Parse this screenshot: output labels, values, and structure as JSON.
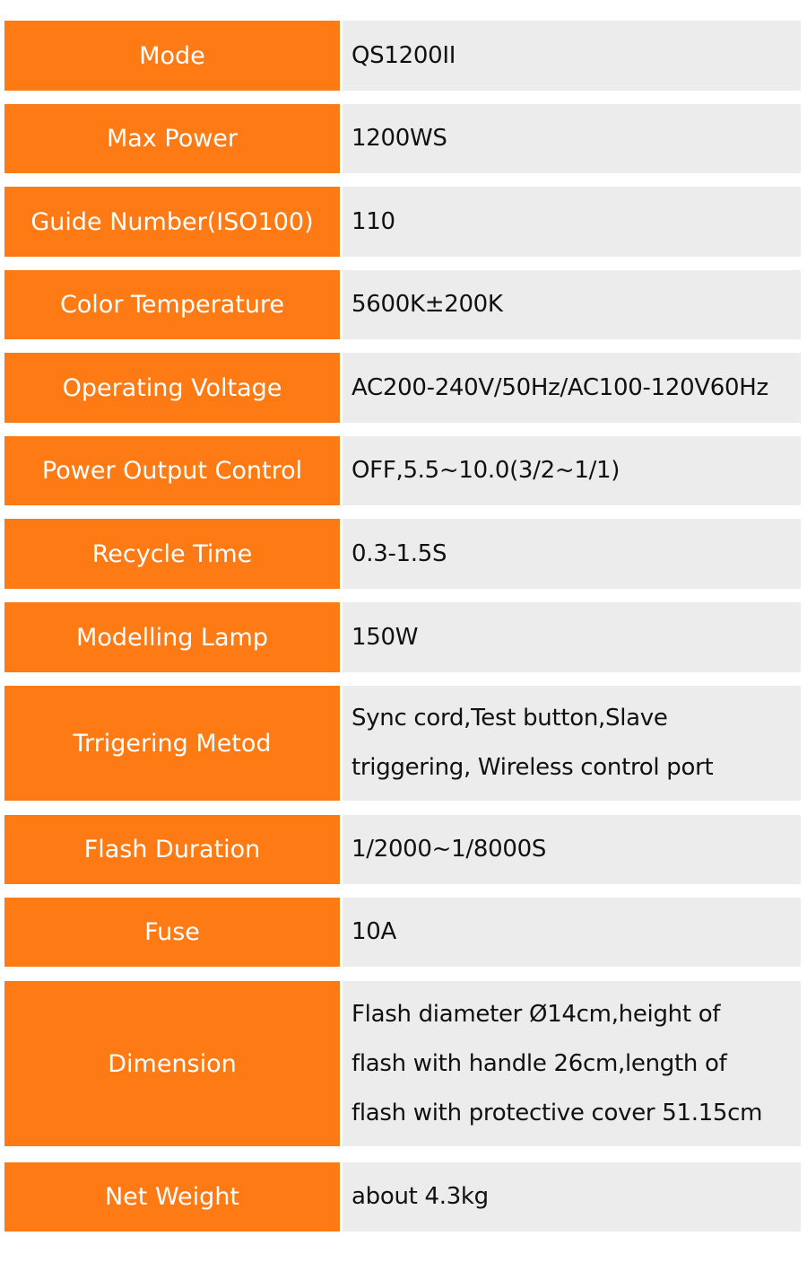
{
  "colors": {
    "label_bg": "#fd7a14",
    "value_bg": "#ececec"
  },
  "specs": [
    {
      "label": "Mode",
      "value": [
        "QS1200II"
      ]
    },
    {
      "label": "Max Power",
      "value": [
        "1200WS"
      ]
    },
    {
      "label": "Guide Number(ISO100)",
      "value": [
        "110"
      ]
    },
    {
      "label": "Color Temperature",
      "value": [
        "5600K±200K"
      ]
    },
    {
      "label": "Operating Voltage",
      "value": [
        "AC200-240V/50Hz/AC100-120V60Hz"
      ]
    },
    {
      "label": "Power Output Control",
      "value": [
        "OFF,5.5~10.0(3/2~1/1)"
      ]
    },
    {
      "label": "Recycle Time",
      "value": [
        "0.3-1.5S"
      ]
    },
    {
      "label": "Modelling Lamp",
      "value": [
        "150W"
      ]
    },
    {
      "label": "Trrigering Metod",
      "value": [
        "Sync cord,Test button,Slave",
        "triggering, Wireless control port"
      ]
    },
    {
      "label": "Flash Duration",
      "value": [
        "1/2000~1/8000S"
      ]
    },
    {
      "label": "Fuse",
      "value": [
        "10A"
      ]
    },
    {
      "label": "Dimension",
      "value": [
        "Flash diameter Ø14cm,height of",
        "flash with handle 26cm,length of",
        "flash with protective cover 51.15cm"
      ]
    },
    {
      "label": "Net Weight",
      "value": [
        "about 4.3kg"
      ]
    }
  ]
}
